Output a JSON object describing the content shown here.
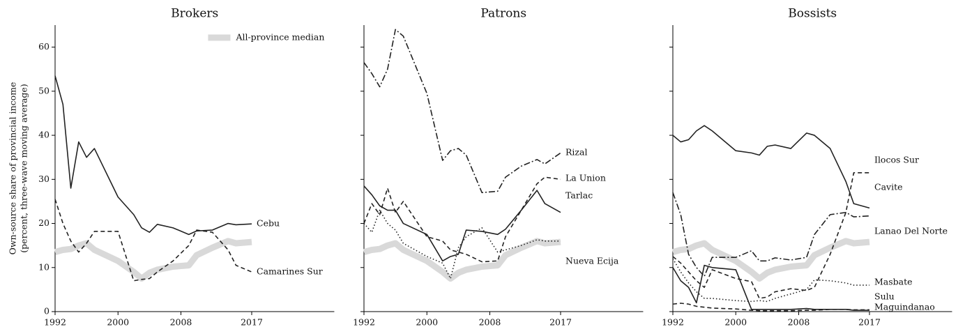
{
  "chart_data": [
    {
      "type": "line",
      "title": "Brokers",
      "ylabel": [
        "Own-source share of provincial income",
        "(percent, three-wave moving average)"
      ],
      "x": [
        1992,
        1993,
        1994,
        1995,
        1996,
        1997,
        2000,
        2002,
        2003,
        2004,
        2005,
        2007,
        2009,
        2010,
        2012,
        2014,
        2015,
        2017
      ],
      "xlim": [
        1992,
        2027.5
      ],
      "xticks": [
        1992,
        2000,
        2008,
        2017
      ],
      "ylim": [
        0,
        65
      ],
      "yticks": [
        0,
        10,
        20,
        30,
        40,
        50,
        60
      ],
      "show_ytick_labels": true,
      "legend": "upper right",
      "series": [
        {
          "name": "All-province median",
          "color": "#d9d9d9",
          "style": "thick",
          "values": [
            13.5,
            14,
            14.2,
            15,
            15.5,
            14,
            11.5,
            9,
            7.5,
            8.8,
            9.5,
            10.2,
            10.5,
            12.8,
            14.5,
            16,
            15.5,
            15.8
          ]
        },
        {
          "name": "Cebu",
          "color": "#222222",
          "style": "solid",
          "values": [
            53.5,
            47,
            28,
            38.5,
            35,
            37,
            26,
            22,
            19,
            18,
            19.8,
            19,
            17.5,
            18.3,
            18.5,
            20,
            19.7,
            19.9
          ]
        },
        {
          "name": "Camarines Sur",
          "color": "#222222",
          "style": "dashed",
          "values": [
            25.5,
            20,
            16,
            13.5,
            15.5,
            18.2,
            18.2,
            7,
            7.3,
            7.5,
            9,
            11.5,
            15,
            18.5,
            18,
            14,
            10.5,
            9
          ]
        }
      ]
    },
    {
      "type": "line",
      "title": "Patrons",
      "x": [
        1992,
        1993,
        1994,
        1995,
        1996,
        1997,
        2000,
        2002,
        2003,
        2004,
        2005,
        2007,
        2009,
        2010,
        2012,
        2014,
        2015,
        2017
      ],
      "xlim": [
        1992,
        2027.5
      ],
      "xticks": [
        1992,
        2000,
        2008,
        2017
      ],
      "ylim": [
        0,
        65
      ],
      "yticks": [
        0,
        10,
        20,
        30,
        40,
        50,
        60
      ],
      "show_ytick_labels": false,
      "series": [
        {
          "name": "All-province median",
          "color": "#d9d9d9",
          "style": "thick",
          "values": [
            13.5,
            14,
            14.2,
            15,
            15.5,
            14,
            11.5,
            9,
            7.5,
            8.8,
            9.5,
            10.2,
            10.5,
            12.8,
            14.5,
            16,
            15.5,
            15.8
          ]
        },
        {
          "name": "Rizal",
          "color": "#222222",
          "style": "dashdot",
          "values": [
            56.5,
            54,
            51,
            55,
            64,
            62.5,
            49.5,
            34.3,
            36.5,
            37,
            35.5,
            27,
            27.3,
            30.5,
            33,
            34.5,
            33.5,
            36
          ]
        },
        {
          "name": "La Union",
          "color": "#222222",
          "style": "dashed",
          "values": [
            20,
            24.5,
            22,
            28,
            22.5,
            25,
            17,
            16,
            14,
            13.5,
            13,
            11.3,
            11.5,
            17,
            23,
            29,
            30.5,
            30
          ]
        },
        {
          "name": "Tarlac",
          "color": "#222222",
          "style": "solid",
          "values": [
            28.5,
            26.5,
            24,
            23,
            23,
            20,
            17.5,
            11.5,
            12.5,
            13,
            18.5,
            18.2,
            17.5,
            18.7,
            23,
            27.5,
            24.5,
            22.5
          ]
        },
        {
          "name": "Nueva Ecija",
          "color": "#222222",
          "style": "dotted",
          "values": [
            20,
            18,
            23,
            20,
            18.5,
            15.5,
            12.5,
            11,
            7.5,
            14.5,
            17,
            19,
            13.5,
            14,
            15,
            16.3,
            16,
            16
          ]
        }
      ]
    },
    {
      "type": "line",
      "title": "Bossists",
      "x": [
        1992,
        1993,
        1994,
        1995,
        1996,
        1997,
        2000,
        2002,
        2003,
        2004,
        2005,
        2007,
        2009,
        2010,
        2012,
        2014,
        2015,
        2017
      ],
      "xlim": [
        1992,
        2027.5
      ],
      "xticks": [
        1992,
        2000,
        2008,
        2017
      ],
      "ylim": [
        0,
        65
      ],
      "yticks": [
        0,
        10,
        20,
        30,
        40,
        50,
        60
      ],
      "show_ytick_labels": false,
      "series": [
        {
          "name": "All-province median",
          "color": "#d9d9d9",
          "style": "thick",
          "values": [
            13.5,
            14,
            14.2,
            15,
            15.5,
            14,
            11.5,
            9,
            7.5,
            8.8,
            9.5,
            10.2,
            10.5,
            12.8,
            14.5,
            16,
            15.5,
            15.8
          ]
        },
        {
          "name": "Ilocos Sur",
          "color": "#222222",
          "style": "solid",
          "values": [
            40,
            38.5,
            39,
            41,
            42.2,
            41,
            36.5,
            36,
            35.5,
            37.5,
            37.8,
            37,
            40.5,
            40,
            37,
            29.5,
            24.5,
            23.5
          ]
        },
        {
          "name": "Cavite",
          "color": "#222222",
          "style": "dashed",
          "values": [
            12.5,
            11,
            9,
            7,
            5.5,
            9.5,
            7.5,
            6.8,
            3,
            3.3,
            4.5,
            5.2,
            4.8,
            5.5,
            13,
            22.5,
            31.5,
            31.5
          ]
        },
        {
          "name": "Lanao Del Norte",
          "color": "#222222",
          "style": "dashdot",
          "values": [
            27,
            22,
            13,
            10,
            8,
            12.3,
            12.3,
            13.8,
            11.5,
            11.5,
            12.2,
            11.7,
            12.3,
            17.5,
            22,
            22.5,
            21.5,
            21.7
          ]
        },
        {
          "name": "Masbate",
          "color": "#222222",
          "style": "dotted",
          "values": [
            12,
            9,
            6.5,
            4.5,
            3,
            3,
            2.5,
            2.3,
            2.5,
            2.3,
            3,
            4,
            5,
            7.2,
            7,
            6.5,
            6,
            6
          ]
        },
        {
          "name": "Sulu",
          "color": "#222222",
          "style": "solid",
          "values": [
            10,
            7,
            5.5,
            2,
            10.5,
            10,
            9.5,
            0.5,
            0.5,
            0.5,
            0.5,
            0.5,
            0.7,
            0.5,
            0.5,
            0.5,
            0.3,
            0.3
          ]
        },
        {
          "name": "Maguindanao",
          "color": "#222222",
          "style": "dashed",
          "values": [
            1.7,
            1.9,
            1.7,
            1.2,
            1,
            0.8,
            0.6,
            0.3,
            0.2,
            0.2,
            0.2,
            0.2,
            0.3,
            0.3,
            0.5,
            0.5,
            0.4,
            0.4
          ]
        }
      ]
    }
  ]
}
